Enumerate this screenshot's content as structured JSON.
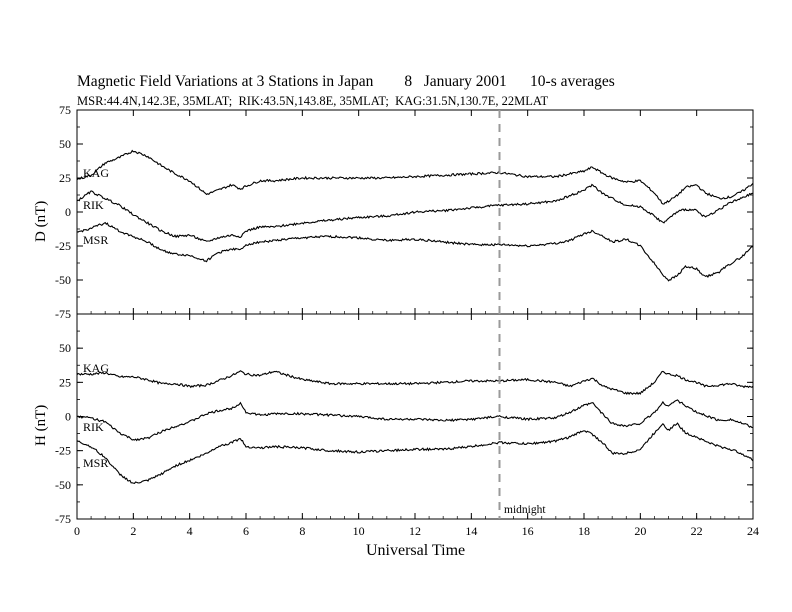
{
  "title": "Magnetic Field Variations at 3 Stations in Japan        8   January 2001      10-s averages",
  "subtitle": "MSR:44.4N,142.3E, 35MLAT;  RIK:43.5N,143.8E, 35MLAT;  KAG:31.5N,130.7E, 22MLAT",
  "chart_data": [
    {
      "type": "line",
      "panel": "D",
      "ylabel": "D (nT)",
      "ylim": [
        -75,
        75
      ],
      "yticks": [
        75,
        50,
        25,
        0,
        -25,
        -50,
        -75
      ],
      "xlim": [
        0,
        24
      ],
      "xticks": [
        0,
        2,
        4,
        6,
        8,
        10,
        12,
        14,
        16,
        18,
        20,
        22,
        24
      ],
      "series": [
        {
          "name": "KAG",
          "x": [
            0,
            0.5,
            1,
            1.5,
            2,
            2.5,
            3,
            3.5,
            4,
            4.6,
            5,
            5.5,
            5.8,
            6,
            6.5,
            7,
            8,
            9,
            10,
            11,
            12,
            13,
            14,
            15,
            16,
            17,
            17.5,
            18,
            18.3,
            18.7,
            19,
            19.5,
            20,
            20.5,
            20.8,
            21,
            21.3,
            21.6,
            22,
            22.3,
            22.8,
            23.2,
            23.6,
            24
          ],
          "y": [
            24,
            27,
            36,
            40,
            45,
            41,
            34,
            28,
            23,
            13,
            16,
            20,
            17,
            19,
            23,
            23,
            25,
            25,
            25,
            25,
            26,
            27,
            28,
            29,
            26,
            26,
            28,
            30,
            33,
            28,
            25,
            22,
            23,
            14,
            6,
            8,
            12,
            18,
            20,
            14,
            10,
            11,
            15,
            21
          ]
        },
        {
          "name": "RIK",
          "x": [
            0,
            0.5,
            1,
            1.5,
            2,
            2.5,
            3,
            3.5,
            4,
            4.6,
            5,
            5.5,
            5.8,
            6,
            6.5,
            7,
            8,
            9,
            10,
            11,
            12,
            13,
            14,
            15,
            16,
            17,
            17.5,
            18,
            18.3,
            18.7,
            19,
            19.5,
            20,
            20.5,
            20.8,
            21,
            21.3,
            21.6,
            22,
            22.3,
            22.8,
            23.2,
            23.6,
            24
          ],
          "y": [
            8,
            15,
            10,
            5,
            -2,
            -8,
            -14,
            -18,
            -17,
            -22,
            -19,
            -17,
            -18,
            -14,
            -11,
            -11,
            -8,
            -6,
            -4,
            -3,
            0,
            1,
            3,
            5,
            6,
            8,
            12,
            16,
            20,
            13,
            10,
            5,
            4,
            -3,
            -8,
            -5,
            0,
            2,
            1,
            -4,
            2,
            7,
            10,
            14
          ]
        },
        {
          "name": "MSR",
          "x": [
            0,
            0.5,
            1,
            1.5,
            2,
            2.5,
            3,
            3.5,
            4,
            4.6,
            5,
            5.5,
            5.8,
            6,
            6.5,
            7,
            8,
            9,
            10,
            11,
            12,
            13,
            14,
            15,
            16,
            17,
            17.5,
            18,
            18.3,
            18.7,
            19,
            19.5,
            20,
            20.5,
            20.8,
            21,
            21.3,
            21.6,
            22,
            22.3,
            22.8,
            23.2,
            23.6,
            24
          ],
          "y": [
            -15,
            -12,
            -8,
            -14,
            -18,
            -22,
            -28,
            -31,
            -32,
            -36,
            -30,
            -27,
            -28,
            -24,
            -22,
            -21,
            -19,
            -18,
            -19,
            -21,
            -20,
            -22,
            -24,
            -24,
            -25,
            -23,
            -21,
            -16,
            -14,
            -18,
            -22,
            -20,
            -25,
            -38,
            -46,
            -50,
            -47,
            -40,
            -42,
            -48,
            -44,
            -38,
            -33,
            -25
          ]
        }
      ]
    },
    {
      "type": "line",
      "panel": "H",
      "ylabel": "H (nT)",
      "xlabel": "Universal Time",
      "ylim": [
        -75,
        75
      ],
      "yticks": [
        75,
        50,
        25,
        0,
        -25,
        -50,
        -75
      ],
      "xlim": [
        0,
        24
      ],
      "xticks": [
        0,
        2,
        4,
        6,
        8,
        10,
        12,
        14,
        16,
        18,
        20,
        22,
        24
      ],
      "series": [
        {
          "name": "KAG",
          "x": [
            0,
            0.5,
            1,
            1.5,
            2,
            2.5,
            3,
            3.5,
            4,
            4.6,
            5,
            5.5,
            5.8,
            6,
            6.5,
            7,
            8,
            9,
            10,
            11,
            12,
            13,
            14,
            15,
            16,
            17,
            17.5,
            18,
            18.3,
            18.7,
            19,
            19.5,
            20,
            20.5,
            20.8,
            21,
            21.3,
            21.6,
            22,
            22.3,
            22.8,
            23.2,
            23.6,
            24
          ],
          "y": [
            31,
            31,
            32,
            29,
            29,
            27,
            24,
            24,
            22,
            23,
            26,
            30,
            33,
            31,
            30,
            33,
            27,
            24,
            24,
            24,
            24,
            25,
            26,
            26,
            27,
            25,
            22,
            26,
            28,
            22,
            20,
            17,
            17,
            25,
            33,
            31,
            30,
            27,
            25,
            22,
            23,
            24,
            22,
            22
          ]
        },
        {
          "name": "RIK",
          "x": [
            0,
            0.5,
            1,
            1.5,
            2,
            2.5,
            3,
            3.5,
            4,
            4.6,
            5,
            5.5,
            5.8,
            6,
            6.5,
            7,
            8,
            9,
            10,
            11,
            12,
            13,
            14,
            15,
            16,
            17,
            17.5,
            18,
            18.3,
            18.7,
            19,
            19.5,
            20,
            20.5,
            20.8,
            21,
            21.3,
            21.6,
            22,
            22.3,
            22.8,
            23.2,
            23.6,
            24
          ],
          "y": [
            0,
            -1,
            -4,
            -12,
            -17,
            -16,
            -11,
            -7,
            -4,
            2,
            4,
            6,
            10,
            3,
            1,
            2,
            2,
            1,
            0,
            -2,
            -2,
            -3,
            -2,
            0,
            -2,
            -1,
            3,
            8,
            10,
            1,
            -5,
            -7,
            -5,
            3,
            10,
            8,
            12,
            8,
            3,
            1,
            -3,
            -2,
            -5,
            -8
          ]
        },
        {
          "name": "MSR",
          "x": [
            0,
            0.5,
            1,
            1.5,
            2,
            2.5,
            3,
            3.5,
            4,
            4.6,
            5,
            5.5,
            5.8,
            6,
            6.5,
            7,
            8,
            9,
            10,
            11,
            12,
            13,
            14,
            15,
            16,
            17,
            17.5,
            18,
            18.3,
            18.7,
            19,
            19.5,
            20,
            20.5,
            20.8,
            21,
            21.3,
            21.6,
            22,
            22.3,
            22.8,
            23.2,
            23.6,
            24
          ],
          "y": [
            -18,
            -22,
            -30,
            -42,
            -49,
            -47,
            -42,
            -36,
            -32,
            -27,
            -22,
            -19,
            -16,
            -22,
            -23,
            -22,
            -23,
            -25,
            -26,
            -25,
            -24,
            -24,
            -22,
            -19,
            -20,
            -18,
            -15,
            -10,
            -13,
            -20,
            -27,
            -27,
            -24,
            -12,
            -5,
            -10,
            -5,
            -12,
            -15,
            -18,
            -22,
            -24,
            -27,
            -32
          ]
        }
      ]
    }
  ],
  "marker": {
    "x": 15,
    "style": "dashed",
    "label": "midnight"
  },
  "colors": {
    "trace": "#000000",
    "marker": "#9a9a9a"
  }
}
